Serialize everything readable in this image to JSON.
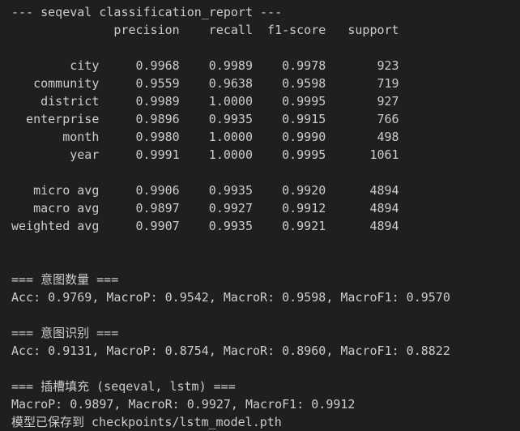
{
  "report": {
    "title": "--- seqeval classification_report ---",
    "headers": [
      "precision",
      "recall",
      "f1-score",
      "support"
    ],
    "rows": [
      {
        "label": "city",
        "precision": "0.9968",
        "recall": "0.9989",
        "f1": "0.9978",
        "support": "923"
      },
      {
        "label": "community",
        "precision": "0.9559",
        "recall": "0.9638",
        "f1": "0.9598",
        "support": "719"
      },
      {
        "label": "district",
        "precision": "0.9989",
        "recall": "1.0000",
        "f1": "0.9995",
        "support": "927"
      },
      {
        "label": "enterprise",
        "precision": "0.9896",
        "recall": "0.9935",
        "f1": "0.9915",
        "support": "766"
      },
      {
        "label": "month",
        "precision": "0.9980",
        "recall": "1.0000",
        "f1": "0.9990",
        "support": "498"
      },
      {
        "label": "year",
        "precision": "0.9991",
        "recall": "1.0000",
        "f1": "0.9995",
        "support": "1061"
      }
    ],
    "averages": [
      {
        "label": "micro avg",
        "precision": "0.9906",
        "recall": "0.9935",
        "f1": "0.9920",
        "support": "4894"
      },
      {
        "label": "macro avg",
        "precision": "0.9897",
        "recall": "0.9927",
        "f1": "0.9912",
        "support": "4894"
      },
      {
        "label": "weighted avg",
        "precision": "0.9907",
        "recall": "0.9935",
        "f1": "0.9921",
        "support": "4894"
      }
    ]
  },
  "intent_count": {
    "heading": "=== 意图数量 ===",
    "metrics": "Acc: 0.9769, MacroP: 0.9542, MacroR: 0.9598, MacroF1: 0.9570"
  },
  "intent_recognition": {
    "heading": "=== 意图识别 ===",
    "metrics": "Acc: 0.9131, MacroP: 0.8754, MacroR: 0.8960, MacroF1: 0.8822"
  },
  "slot_filling": {
    "heading": "=== 插槽填充 (seqeval, lstm) ===",
    "metrics": "MacroP: 0.9897, MacroR: 0.9927, MacroF1: 0.9912"
  },
  "saved_message": "模型已保存到 checkpoints/lstm_model.pth"
}
